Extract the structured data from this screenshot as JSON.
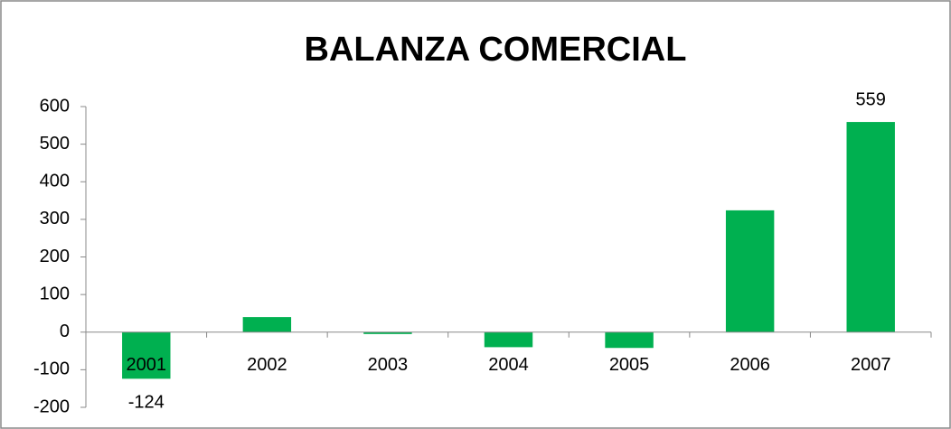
{
  "chart_data": {
    "type": "bar",
    "title": "BALANZA COMERCIAL",
    "categories": [
      "2001",
      "2002",
      "2003",
      "2004",
      "2005",
      "2006",
      "2007"
    ],
    "values": [
      -124,
      40,
      -5,
      -40,
      -42,
      324,
      559
    ],
    "value_labels": [
      "-124",
      null,
      null,
      null,
      null,
      null,
      "559"
    ],
    "color": "#00b050",
    "ylim": [
      -200,
      600
    ],
    "yticks": [
      -200,
      -100,
      0,
      100,
      200,
      300,
      400,
      500,
      600
    ],
    "grid": false
  }
}
